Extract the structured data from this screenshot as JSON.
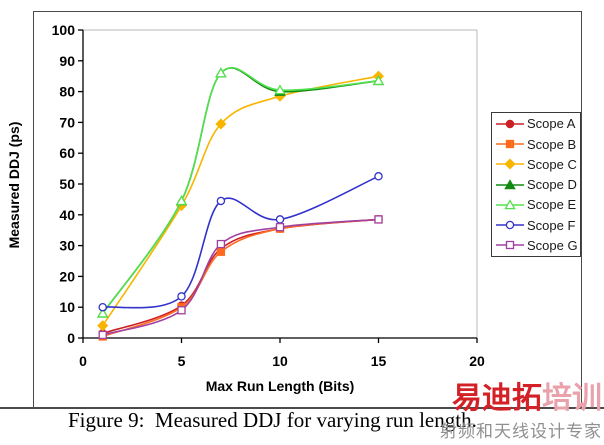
{
  "chart_data": {
    "type": "line",
    "x": [
      1,
      5,
      7,
      10,
      15
    ],
    "series": [
      {
        "name": "Scope A",
        "marker": "circle",
        "filled": true,
        "color": "#cc2027",
        "values": [
          1.5,
          10.5,
          29,
          35.5,
          38.5
        ]
      },
      {
        "name": "Scope B",
        "marker": "square",
        "filled": true,
        "color": "#ff6a1e",
        "values": [
          0.5,
          10,
          28,
          35.5,
          38.5
        ]
      },
      {
        "name": "Scope C",
        "marker": "diamond",
        "filled": true,
        "color": "#f7b500",
        "values": [
          4,
          43,
          69.5,
          78.5,
          85
        ]
      },
      {
        "name": "Scope D",
        "marker": "triangle",
        "filled": true,
        "color": "#128a12",
        "values": [
          8,
          44.5,
          86,
          80,
          83.5
        ]
      },
      {
        "name": "Scope E",
        "marker": "triangle",
        "filled": false,
        "color": "#53e04f",
        "values": [
          8,
          44.5,
          86,
          80.5,
          83.5
        ]
      },
      {
        "name": "Scope F",
        "marker": "circle",
        "filled": false,
        "color": "#3333cc",
        "values": [
          10,
          13.5,
          44.5,
          38.5,
          52.5
        ]
      },
      {
        "name": "Scope G",
        "marker": "square",
        "filled": false,
        "color": "#a040a0",
        "values": [
          1,
          9,
          30.5,
          36,
          38.5
        ]
      }
    ],
    "title": "",
    "xlabel": "Max Run Length (Bits)",
    "ylabel": "Measured DDJ (ps)",
    "xlim": [
      0,
      20
    ],
    "ylim": [
      0,
      100
    ],
    "xticks": [
      0,
      5,
      10,
      15,
      20
    ],
    "yticks": [
      0,
      10,
      20,
      30,
      40,
      50,
      60,
      70,
      80,
      90,
      100
    ],
    "grid": false,
    "legend_position": "right",
    "smoothed_lines": true,
    "axis_color": "#000000",
    "plot_border_color": "#b8b8b8"
  },
  "caption": "Figure 9:  Measured DDJ for varying run length.",
  "watermark": {
    "brand_solid": "易迪拓",
    "brand_light": "培训",
    "tagline": "射频和天线设计专家",
    "color_solid": "#d42027",
    "color_light": "#e9a1ab",
    "color_tagline": "#8f8f8f"
  }
}
